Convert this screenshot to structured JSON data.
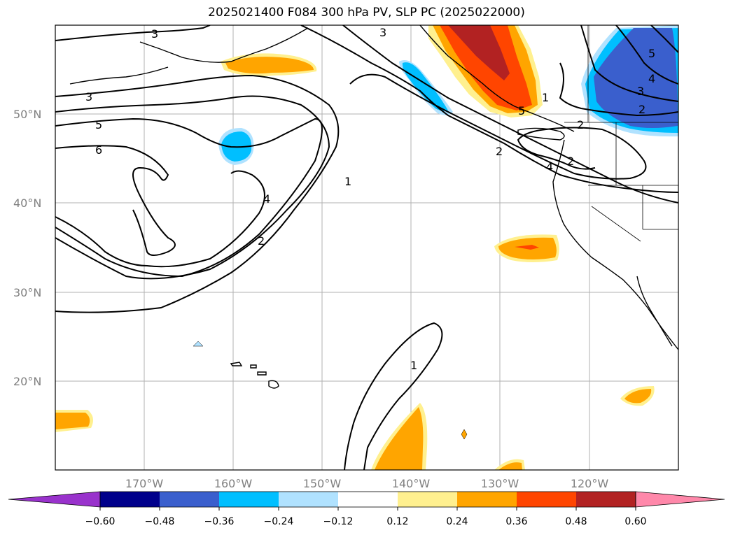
{
  "title": "2025021400 F084 300 hPa PV, SLP PC (2025022000)",
  "map": {
    "lat_labels": [
      "50°N",
      "40°N",
      "30°N",
      "20°N"
    ],
    "lon_labels": [
      "170°W",
      "160°W",
      "150°W",
      "140°W",
      "130°W",
      "120°W"
    ],
    "lon_range": [
      -180,
      -110
    ],
    "lat_range": [
      10,
      60
    ]
  },
  "colorbar": {
    "ticks": [
      "−0.60",
      "−0.48",
      "−0.36",
      "−0.24",
      "−0.12",
      "0.12",
      "0.24",
      "0.36",
      "0.48",
      "0.60"
    ],
    "colors": [
      "#9932cc",
      "#00008b",
      "#3a5fcd",
      "#00bfff",
      "#b0e2ff",
      "#ffffff",
      "#fff08f",
      "#ffa500",
      "#ff4500",
      "#b22222",
      "#ff88aa"
    ]
  },
  "contour_labels": [
    "3",
    "3",
    "5",
    "6",
    "4",
    "2",
    "1",
    "3",
    "2",
    "1",
    "5",
    "3",
    "2",
    "2",
    "2",
    "4",
    "5",
    "1",
    "4"
  ]
}
